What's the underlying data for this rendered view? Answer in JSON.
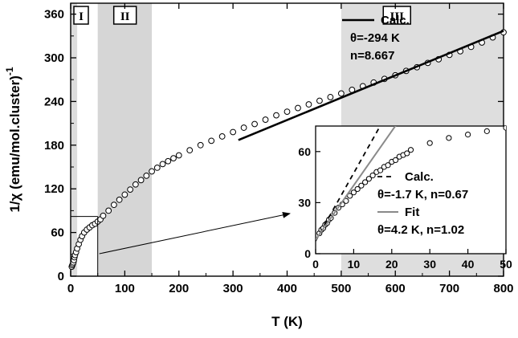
{
  "chart_data": {
    "type": "scatter",
    "xlabel": "T (K)",
    "ylabel": "1/χ (emu/mol.cluster)",
    "ylabel_exp": "-1",
    "xlim": [
      0,
      800
    ],
    "ylim": [
      0,
      375
    ],
    "xticks": [
      0,
      100,
      200,
      300,
      400,
      500,
      600,
      700,
      800
    ],
    "yticks": [
      0,
      60,
      120,
      180,
      240,
      300,
      360
    ],
    "grid": false,
    "regions": [
      {
        "label": "I",
        "x": [
          0,
          12
        ]
      },
      {
        "label": "II",
        "x": [
          50,
          150
        ]
      },
      {
        "label": "III",
        "x": [
          500,
          800
        ]
      }
    ],
    "series": [
      {
        "name": "",
        "kind": "markers",
        "x": [
          2,
          3,
          4,
          5,
          6,
          7,
          8,
          10,
          12,
          15,
          18,
          21,
          25,
          30,
          35,
          40,
          45,
          50,
          55,
          60,
          70,
          80,
          90,
          100,
          110,
          120,
          130,
          140,
          150,
          160,
          170,
          180,
          190,
          200,
          220,
          240,
          260,
          280,
          300,
          320,
          340,
          360,
          380,
          400,
          420,
          440,
          460,
          480,
          500,
          520,
          540,
          560,
          580,
          600,
          620,
          640,
          660,
          680,
          700,
          720,
          740,
          760,
          780,
          800
        ],
        "y": [
          13,
          15,
          17,
          19,
          22,
          26,
          29,
          33,
          38,
          44,
          50,
          55,
          60,
          64,
          67,
          70,
          72,
          75,
          78,
          83,
          90,
          98,
          105,
          112,
          119,
          126,
          132,
          138,
          144,
          149,
          154,
          158,
          162,
          166,
          173,
          180,
          186,
          192,
          198,
          204,
          209,
          215,
          221,
          226,
          231,
          236,
          241,
          246,
          251,
          256,
          261,
          266,
          271,
          276,
          282,
          287,
          293,
          298,
          304,
          309,
          315,
          321,
          328,
          335
        ]
      },
      {
        "name": "Calc.",
        "kind": "line",
        "x": [
          310,
          800
        ],
        "y": [
          187,
          337
        ]
      }
    ],
    "legend": {
      "position": "top-right",
      "entries": [
        "Calc.",
        "θ=-294 K",
        "n=8.667"
      ]
    },
    "zoom_box": {
      "x": [
        0,
        50
      ],
      "y": [
        0,
        82
      ]
    },
    "inset": {
      "xlim": [
        0,
        50
      ],
      "ylim": [
        0,
        75
      ],
      "xticks": [
        0,
        10,
        20,
        30,
        40,
        50
      ],
      "yticks": [
        0,
        30,
        60
      ],
      "series": [
        {
          "name": "",
          "kind": "markers",
          "x": [
            1,
            1.5,
            2,
            2.5,
            3,
            3.5,
            4,
            5,
            6,
            7,
            8,
            9,
            10,
            11,
            12,
            13,
            14,
            15,
            16,
            17,
            18,
            19,
            20,
            21,
            22,
            23,
            24,
            25,
            30,
            35,
            40,
            45,
            50
          ],
          "y": [
            12,
            14,
            15,
            17,
            18,
            20,
            21,
            24,
            27,
            29,
            31,
            34,
            36,
            38,
            40,
            42,
            44,
            46,
            48,
            49,
            51,
            52,
            54,
            55,
            57,
            58,
            59,
            61,
            65,
            68,
            70,
            72,
            74
          ]
        },
        {
          "name": "Calc.",
          "kind": "dashed",
          "x": [
            0,
            18.2
          ],
          "y": [
            7.5,
            80
          ]
        },
        {
          "name": "Fit",
          "kind": "gray",
          "x": [
            0,
            22.5
          ],
          "y": [
            8.2,
            80
          ]
        }
      ],
      "legend": [
        {
          "line": "dashed",
          "label": "Calc."
        },
        {
          "line": "none",
          "label": "θ=-1.7 K, n=0.67"
        },
        {
          "line": "gray",
          "label": "Fit"
        },
        {
          "line": "none",
          "label": "θ=4.2 K, n=1.02"
        }
      ]
    }
  }
}
